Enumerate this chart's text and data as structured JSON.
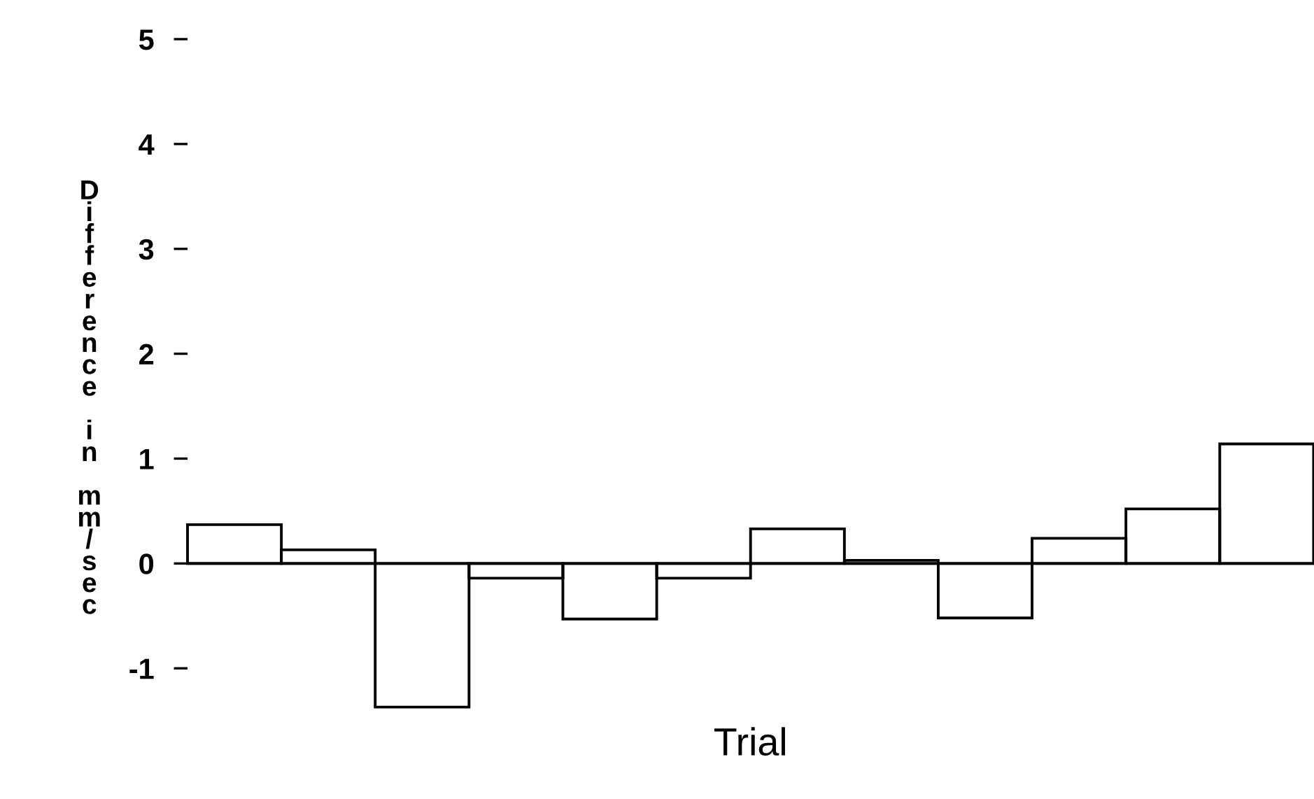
{
  "chart_data": {
    "type": "bar",
    "xlabel": "Trial",
    "ylabel": "Difference in mm/sec",
    "categories": [
      null,
      null,
      null,
      null,
      null,
      null,
      null,
      null,
      null,
      null,
      null,
      null
    ],
    "values": [
      0.37,
      0.13,
      -1.37,
      -0.14,
      -0.53,
      -0.14,
      0.33,
      0.03,
      -0.52,
      0.24,
      0.52,
      1.14
    ],
    "color": "#000000",
    "ylim": [
      -1.37,
      5
    ],
    "yticks": [
      -1,
      0,
      1,
      2,
      3,
      4,
      5
    ]
  }
}
